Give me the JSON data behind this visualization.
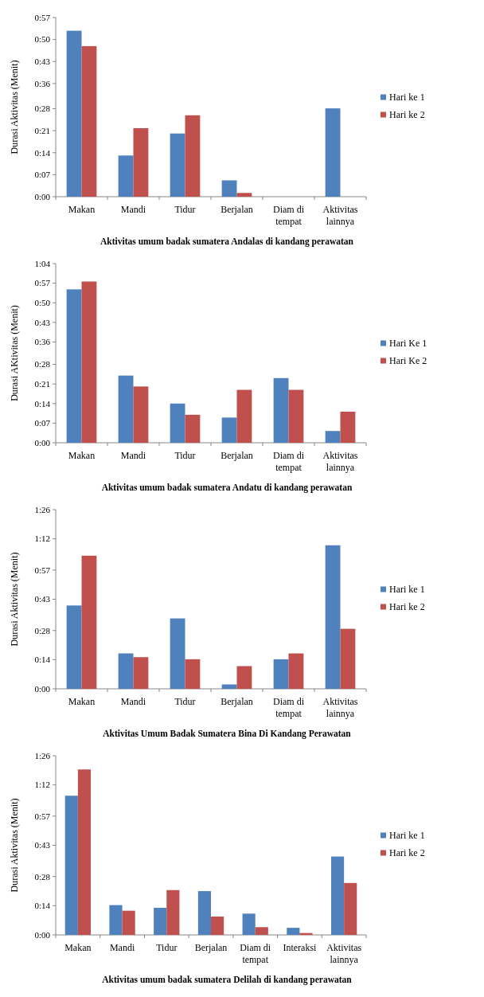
{
  "chart_data": [
    {
      "type": "bar",
      "title": "Aktivitas umum badak sumatera Andalas di kandang perawatan",
      "ylabel": "Durasi Aktivitas (Menit)",
      "categories": [
        "Makan",
        "Mandi",
        "Tidur",
        "Berjalan",
        "Diam di tempat",
        "Aktivitas lainnya"
      ],
      "series": [
        {
          "name": "Hari ke 1",
          "color": "#4f81bd",
          "values": [
            52.8,
            13.1,
            20.1,
            5.2,
            0,
            28.1
          ]
        },
        {
          "name": "Hari ke 2",
          "color": "#c0504d",
          "values": [
            47.9,
            21.8,
            25.9,
            1.2,
            0,
            0
          ]
        }
      ],
      "ylim": [
        0,
        57
      ],
      "yticks": [
        {
          "value": 0,
          "label": "0:00"
        },
        {
          "value": 7,
          "label": "0:07"
        },
        {
          "value": 14,
          "label": "0:14"
        },
        {
          "value": 21,
          "label": "0:21"
        },
        {
          "value": 28,
          "label": "0:28"
        },
        {
          "value": 36,
          "label": "0:36"
        },
        {
          "value": 43,
          "label": "0:43"
        },
        {
          "value": 50,
          "label": "0:50"
        },
        {
          "value": 57,
          "label": "0:57"
        }
      ],
      "grid": false,
      "legend": "right"
    },
    {
      "type": "bar",
      "title": "Aktivitas umum badak sumatera Andatu di kandang perawatan",
      "ylabel": "Durasi AKtivitas (Menit)",
      "categories": [
        "Makan",
        "Mandi",
        "Tidur",
        "Berjalan",
        "Diam di tempat",
        "Aktivitas lainnya"
      ],
      "series": [
        {
          "name": "Hari Ke 1",
          "color": "#4f81bd",
          "values": [
            54.8,
            24.0,
            14.0,
            9.0,
            23.1,
            4.2
          ]
        },
        {
          "name": "Hari Ke 2",
          "color": "#c0504d",
          "values": [
            57.6,
            20.1,
            10.0,
            18.9,
            18.9,
            11.1
          ]
        }
      ],
      "ylim": [
        0,
        64
      ],
      "yticks": [
        {
          "value": 0,
          "label": "0:00"
        },
        {
          "value": 7,
          "label": "0:07"
        },
        {
          "value": 14,
          "label": "0:14"
        },
        {
          "value": 21,
          "label": "0:21"
        },
        {
          "value": 28,
          "label": "0:28"
        },
        {
          "value": 36,
          "label": "0:36"
        },
        {
          "value": 43,
          "label": "0:43"
        },
        {
          "value": 50,
          "label": "0:50"
        },
        {
          "value": 57,
          "label": "0:57"
        },
        {
          "value": 64,
          "label": "1:04"
        }
      ],
      "grid": false,
      "legend": "right"
    },
    {
      "type": "bar",
      "title": "Aktivitas Umum Badak Sumatera Bina Di Kandang Perawatan",
      "ylabel": "Durasi Aktivitas (Menit)",
      "categories": [
        "Makan",
        "Mandi",
        "Tidur",
        "Berjalan",
        "Diam di tempat",
        "Aktivitas lainnya"
      ],
      "series": [
        {
          "name": "Hari ke 1",
          "color": "#4f81bd",
          "values": [
            40.0,
            17.0,
            33.8,
            2.1,
            14.2,
            68.9
          ]
        },
        {
          "name": "Hari ke 2",
          "color": "#c0504d",
          "values": [
            63.9,
            15.2,
            14.2,
            10.9,
            17.0,
            28.8
          ]
        }
      ],
      "ylim": [
        0,
        86
      ],
      "yticks": [
        {
          "value": 0,
          "label": "0:00"
        },
        {
          "value": 14,
          "label": "0:14"
        },
        {
          "value": 28,
          "label": "0:28"
        },
        {
          "value": 43,
          "label": "0:43"
        },
        {
          "value": 57,
          "label": "0:57"
        },
        {
          "value": 72,
          "label": "1:12"
        },
        {
          "value": 86,
          "label": "1:26"
        }
      ],
      "grid": false,
      "legend": "right"
    },
    {
      "type": "bar",
      "title": "Aktivitas umum badak sumatera Delilah di kandang perawatan",
      "ylabel": "Durasi Aktivitas  (Menit)",
      "categories": [
        "Makan",
        "Mandi",
        "Tidur",
        "Berjalan",
        "Diam di tempat",
        "Interaksi",
        "Aktivitas lainnya"
      ],
      "series": [
        {
          "name": "Hari ke 1",
          "color": "#4f81bd",
          "values": [
            66.8,
            14.3,
            13.0,
            21.0,
            10.2,
            3.4,
            37.6
          ]
        },
        {
          "name": "Hari ke 2",
          "color": "#c0504d",
          "values": [
            79.4,
            11.6,
            21.5,
            8.8,
            3.7,
            0.9,
            24.9
          ]
        }
      ],
      "ylim": [
        0,
        86
      ],
      "yticks": [
        {
          "value": 0,
          "label": "0:00"
        },
        {
          "value": 14,
          "label": "0:14"
        },
        {
          "value": 28,
          "label": "0:28"
        },
        {
          "value": 43,
          "label": "0:43"
        },
        {
          "value": 57,
          "label": "0:57"
        },
        {
          "value": 72,
          "label": "1:12"
        },
        {
          "value": 86,
          "label": "1:26"
        }
      ],
      "grid": false,
      "legend": "right"
    }
  ]
}
